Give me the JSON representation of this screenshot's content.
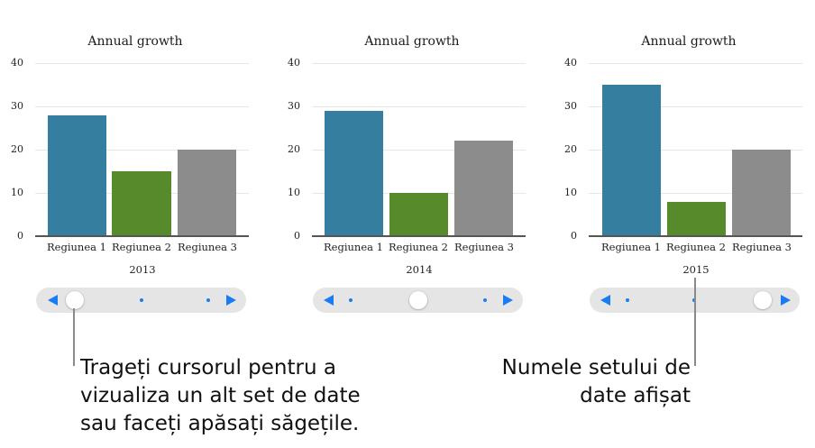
{
  "charts": [
    {
      "title": "Annual growth",
      "set_name": "2013",
      "yticks": [
        "40",
        "30",
        "20",
        "10",
        "0"
      ],
      "categories": [
        "Regiunea 1",
        "Regiunea 2",
        "Regiunea 3"
      ],
      "values": [
        28,
        15,
        20
      ],
      "slider_position": 0
    },
    {
      "title": "Annual growth",
      "set_name": "2014",
      "yticks": [
        "40",
        "30",
        "20",
        "10",
        "0"
      ],
      "categories": [
        "Regiunea 1",
        "Regiunea 2",
        "Regiunea 3"
      ],
      "values": [
        29,
        10,
        22
      ],
      "slider_position": 1
    },
    {
      "title": "Annual growth",
      "set_name": "2015",
      "yticks": [
        "40",
        "30",
        "20",
        "10",
        "0"
      ],
      "categories": [
        "Regiunea 1",
        "Regiunea 2",
        "Regiunea 3"
      ],
      "values": [
        35,
        8,
        20
      ],
      "slider_position": 2
    }
  ],
  "colors": {
    "region1": "#367ea0",
    "region2": "#578a2a",
    "region3": "#8c8c8c",
    "slider_track": "#e5e5e5",
    "slider_accent": "#1a7cf5"
  },
  "slider": {
    "prev_icon": "triangle-left-icon",
    "next_icon": "triangle-right-icon"
  },
  "callouts": {
    "left": [
      "Trageți cursorul pentru a",
      "vizualiza un alt set de date",
      "sau faceți apăsați săgețile."
    ],
    "right": [
      "Numele setului de",
      "date afișat"
    ]
  },
  "chart_data": [
    {
      "type": "bar",
      "title": "Annual growth",
      "xlabel": "2013",
      "ylabel": "",
      "categories": [
        "Regiunea 1",
        "Regiunea 2",
        "Regiunea 3"
      ],
      "values": [
        28,
        15,
        20
      ],
      "ylim": [
        0,
        40
      ],
      "yticks": [
        0,
        10,
        20,
        30,
        40
      ],
      "grid": true,
      "legend": "none"
    },
    {
      "type": "bar",
      "title": "Annual growth",
      "xlabel": "2014",
      "ylabel": "",
      "categories": [
        "Regiunea 1",
        "Regiunea 2",
        "Regiunea 3"
      ],
      "values": [
        29,
        10,
        22
      ],
      "ylim": [
        0,
        40
      ],
      "yticks": [
        0,
        10,
        20,
        30,
        40
      ],
      "grid": true,
      "legend": "none"
    },
    {
      "type": "bar",
      "title": "Annual growth",
      "xlabel": "2015",
      "ylabel": "",
      "categories": [
        "Regiunea 1",
        "Regiunea 2",
        "Regiunea 3"
      ],
      "values": [
        35,
        8,
        20
      ],
      "ylim": [
        0,
        40
      ],
      "yticks": [
        0,
        10,
        20,
        30,
        40
      ],
      "grid": true,
      "legend": "none"
    }
  ]
}
